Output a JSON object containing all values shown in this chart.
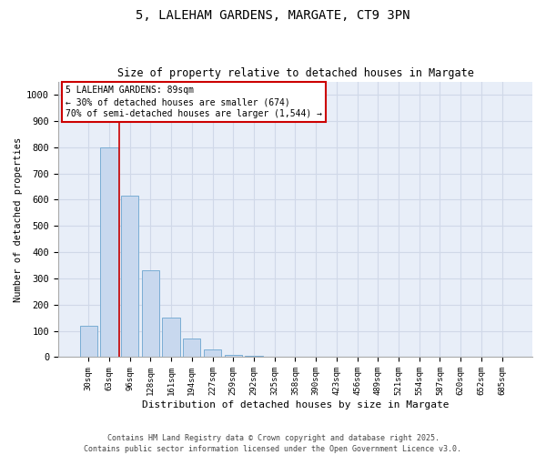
{
  "title1": "5, LALEHAM GARDENS, MARGATE, CT9 3PN",
  "title2": "Size of property relative to detached houses in Margate",
  "xlabel": "Distribution of detached houses by size in Margate",
  "ylabel": "Number of detached properties",
  "categories": [
    "30sqm",
    "63sqm",
    "96sqm",
    "128sqm",
    "161sqm",
    "194sqm",
    "227sqm",
    "259sqm",
    "292sqm",
    "325sqm",
    "358sqm",
    "390sqm",
    "423sqm",
    "456sqm",
    "489sqm",
    "521sqm",
    "554sqm",
    "587sqm",
    "620sqm",
    "652sqm",
    "685sqm"
  ],
  "values": [
    120,
    800,
    615,
    330,
    150,
    70,
    30,
    10,
    5,
    3,
    2,
    1,
    1,
    0,
    0,
    0,
    0,
    0,
    0,
    0,
    0
  ],
  "bar_color": "#c8d8ee",
  "bar_edge_color": "#7aadd4",
  "grid_color": "#d0d8e8",
  "vline_x": 1.5,
  "vline_color": "#cc0000",
  "annotation_box_text": "5 LALEHAM GARDENS: 89sqm\n← 30% of detached houses are smaller (674)\n70% of semi-detached houses are larger (1,544) →",
  "annotation_box_color": "#cc0000",
  "footer1": "Contains HM Land Registry data © Crown copyright and database right 2025.",
  "footer2": "Contains public sector information licensed under the Open Government Licence v3.0.",
  "ylim": [
    0,
    1050
  ],
  "yticks": [
    0,
    100,
    200,
    300,
    400,
    500,
    600,
    700,
    800,
    900,
    1000
  ],
  "figsize": [
    6.0,
    5.0
  ],
  "dpi": 100,
  "bg_color": "#e8eef8"
}
